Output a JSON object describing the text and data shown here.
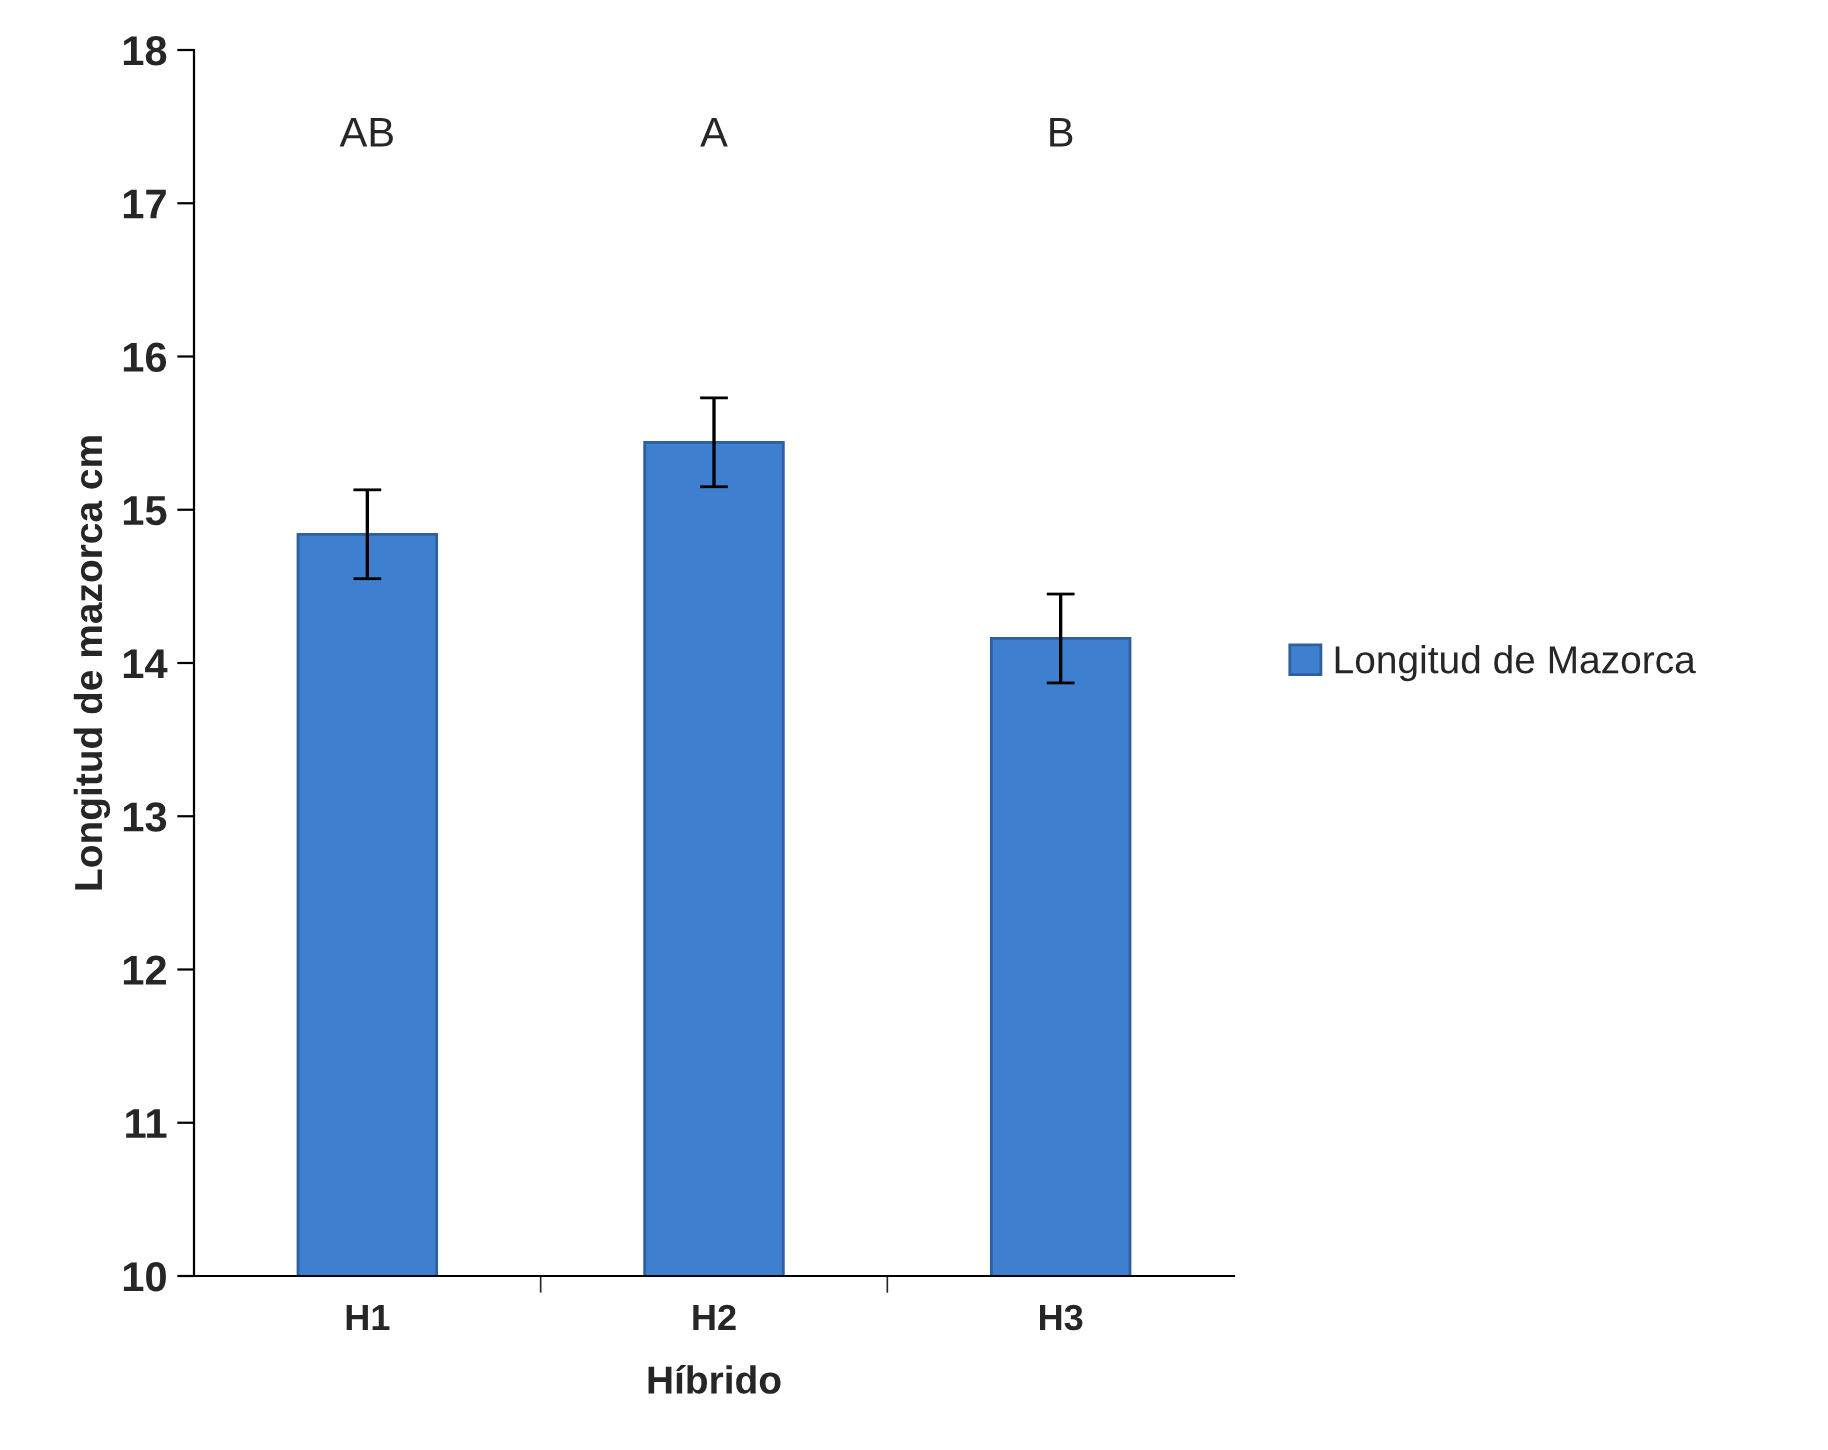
{
  "chart_data": {
    "type": "bar",
    "xlabel": "Híbrido",
    "ylabel": "Longitud de mazorca cm",
    "categories": [
      "H1",
      "H2",
      "H3"
    ],
    "series": [
      {
        "name": "Longitud de Mazorca",
        "color": "#3f7fcf",
        "values": [
          14.84,
          15.44,
          14.16
        ],
        "errors": [
          0.29,
          0.29,
          0.29
        ]
      }
    ],
    "ylim": [
      10,
      18
    ],
    "yticks": [
      10,
      11,
      12,
      13,
      14,
      15,
      16,
      17,
      18
    ],
    "annotations": [
      "AB",
      "A",
      "B"
    ],
    "legend": "right",
    "grid": false
  }
}
